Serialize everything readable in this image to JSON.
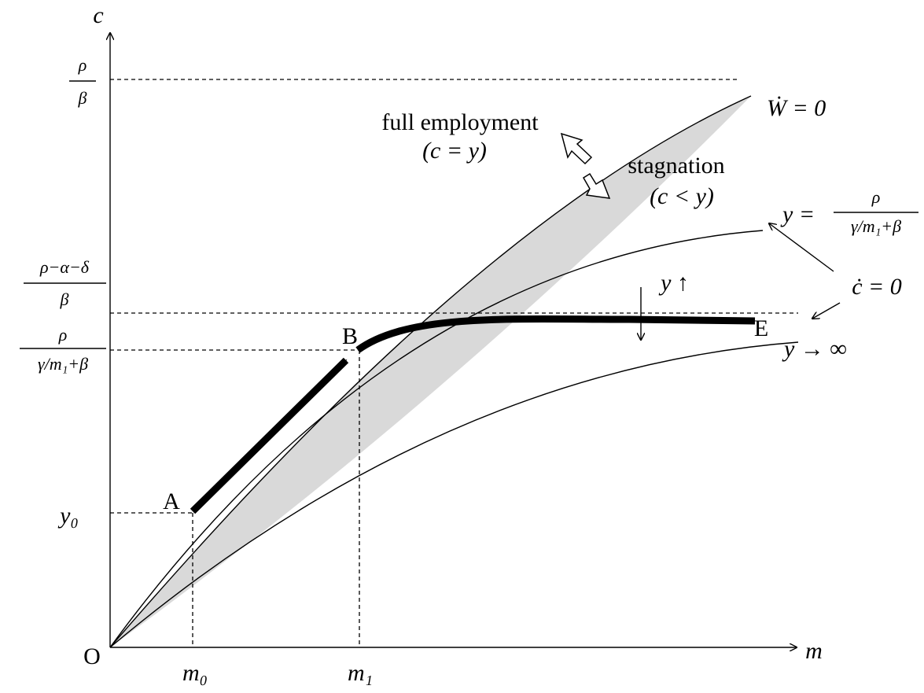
{
  "axes": {
    "y_label": "c",
    "x_label": "m",
    "origin": "O"
  },
  "x_ticks": {
    "m0": "m₀",
    "m1": "m₁"
  },
  "y_ticks": {
    "y0": "y₀",
    "rho_beta": {
      "num": "ρ",
      "den": "β"
    },
    "rho_alpha_delta_beta": {
      "num": "ρ−α−δ",
      "den": "β"
    },
    "rho_gamma": {
      "num": "ρ",
      "den": "γ/m₁+β"
    }
  },
  "points": {
    "a": "A",
    "b": "B",
    "e": "E"
  },
  "curves": {
    "w_dot": "Ẇ = 0",
    "y_curve": {
      "lhs": "y =",
      "num": "ρ",
      "den": "γ/m₁+β"
    },
    "c_dot": "ċ = 0",
    "y_infinity": "y → ∞",
    "y_up": "y ↑"
  },
  "regions": {
    "full_employment": "full employment",
    "full_employment_cond": "(c = y)",
    "stagnation": "stagnation",
    "stagnation_cond": "(c < y)"
  }
}
